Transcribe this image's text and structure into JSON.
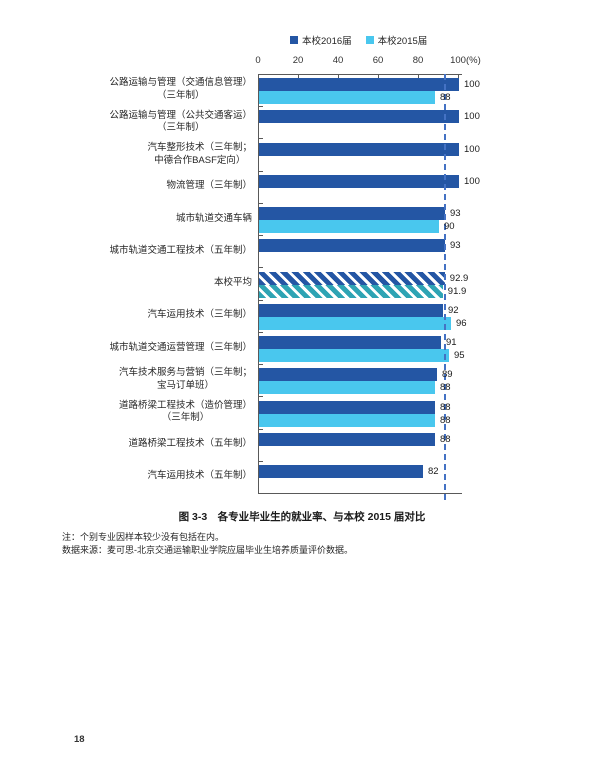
{
  "page_number": "18",
  "caption": "图 3-3　各专业毕业生的就业率、与本校 2015 届对比",
  "notes": [
    "注：个别专业因样本较少没有包括在内。",
    "数据来源：麦可思-北京交通运输职业学院应届毕业生培养质量评价数据。"
  ],
  "colors": {
    "series_2016": "#2456A4",
    "series_2015": "#49C7EE",
    "average_2015_hatch": "#2EA4B4",
    "reference_line": "#4472C4",
    "axis": "#595959"
  },
  "chart_data": {
    "type": "bar",
    "orientation": "horizontal",
    "title": "图 3-3　各专业毕业生的就业率、与本校 2015 届对比",
    "unit": "(%)",
    "xlim": [
      0,
      100
    ],
    "xticks": [
      "0",
      "20",
      "40",
      "60",
      "80",
      "100"
    ],
    "grid": false,
    "legend_position": "top",
    "reference_line": {
      "value": 92.9,
      "style": "dashed"
    },
    "series": [
      {
        "name": "本校2016届",
        "color": "#2456A4"
      },
      {
        "name": "本校2015届",
        "color": "#49C7EE"
      }
    ],
    "categories": [
      {
        "label": "公路运输与管理（交通信息管理）\n（三年制）",
        "values": [
          100,
          88
        ]
      },
      {
        "label": "公路运输与管理（公共交通客运）\n（三年制）",
        "values": [
          100,
          null
        ]
      },
      {
        "label": "汽车整形技术（三年制；\n中德合作BASF定向）",
        "values": [
          100,
          null
        ]
      },
      {
        "label": "物流管理（三年制）",
        "values": [
          100,
          null
        ]
      },
      {
        "label": "城市轨道交通车辆",
        "values": [
          93,
          90
        ]
      },
      {
        "label": "城市轨道交通工程技术（五年制）",
        "values": [
          93,
          null
        ]
      },
      {
        "label": "本校平均",
        "values": [
          92.9,
          91.9
        ],
        "hatched": true
      },
      {
        "label": "汽车运用技术（三年制）",
        "values": [
          92,
          96
        ]
      },
      {
        "label": "城市轨道交通运营管理（三年制）",
        "values": [
          91,
          95
        ]
      },
      {
        "label": "汽车技术服务与营销（三年制；\n宝马订单班）",
        "values": [
          89,
          88
        ]
      },
      {
        "label": "道路桥梁工程技术（造价管理）\n（三年制）",
        "values": [
          88,
          88
        ]
      },
      {
        "label": "道路桥梁工程技术（五年制）",
        "values": [
          88,
          null
        ]
      },
      {
        "label": "汽车运用技术（五年制）",
        "values": [
          82,
          null
        ]
      }
    ]
  }
}
